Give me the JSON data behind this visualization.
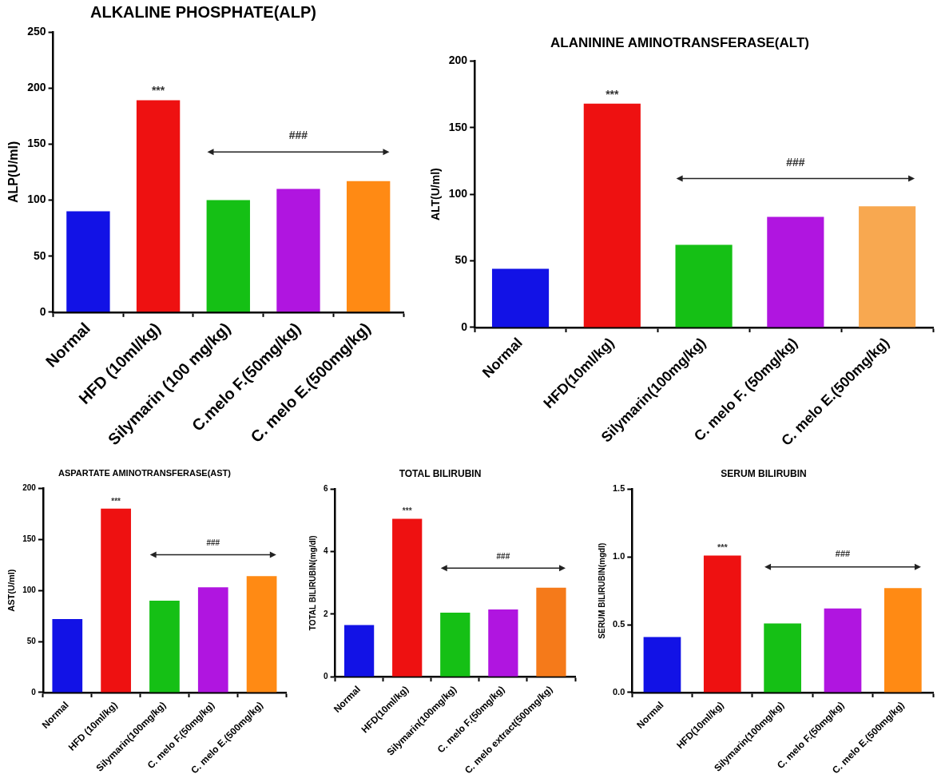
{
  "chart_data": [
    {
      "type": "bar",
      "title": "ALKALINE PHOSPHATE(ALP)",
      "ylabel": "ALP(U/ml)",
      "categories": [
        "Normal",
        "HFD (10ml/kg)",
        "Silymarin (100 mg/kg)",
        "C.melo F.(50mg/kg)",
        "C. melo E.(500mg/kg)"
      ],
      "values": [
        90,
        189,
        100,
        110,
        117
      ],
      "colors": [
        "#1212e6",
        "#ee1111",
        "#15c015",
        "#b015e0",
        "#ff8a14"
      ],
      "ylim": [
        0,
        250
      ],
      "yticks": [
        0,
        50,
        100,
        150,
        200,
        250
      ],
      "grid": false,
      "legend": false,
      "annotations": [
        "***",
        "###"
      ]
    },
    {
      "type": "bar",
      "title": "ALANININE AMINOTRANSFERASE(ALT)",
      "ylabel": "ALT(U/ml)",
      "categories": [
        "Normal",
        "HFD(10ml/kg)",
        "Silymarin(100mg/kg)",
        "C. melo F. (50mg/kg)",
        "C. melo E.(500mg/kg)"
      ],
      "values": [
        44,
        168,
        62,
        83,
        91
      ],
      "colors": [
        "#1212e6",
        "#ee1111",
        "#15c015",
        "#b015e0",
        "#f8a850"
      ],
      "ylim": [
        0,
        200
      ],
      "yticks": [
        0,
        50,
        100,
        150,
        200
      ],
      "grid": false,
      "legend": false,
      "annotations": [
        "***",
        "###"
      ]
    },
    {
      "type": "bar",
      "title": "ASPARTATE AMINOTRANSFERASE(AST)",
      "ylabel": "AST(U/ml)",
      "categories": [
        "Normal",
        "HFD (10ml/kg)",
        "Silymarin(100mg/kg)",
        "C. melo F.(50mg/kg)",
        "C. melo E.(500mg/kg)"
      ],
      "values": [
        72,
        180,
        90,
        103,
        114
      ],
      "colors": [
        "#1212e6",
        "#ee1111",
        "#15c015",
        "#b015e0",
        "#ff8a14"
      ],
      "ylim": [
        0,
        200
      ],
      "yticks": [
        0,
        50,
        100,
        150,
        200
      ],
      "grid": false,
      "legend": false,
      "annotations": [
        "***",
        "###"
      ]
    },
    {
      "type": "bar",
      "title": "TOTAL BILIRUBIN",
      "ylabel": "TOTAL BILIRUBIN(mg/dl)",
      "categories": [
        "Normal",
        "HFD(10ml/kg)",
        "Silymarin(100mg/kg)",
        "C. melo F.(50mg/kg)",
        "C. melo extract(500mg/kg)"
      ],
      "values": [
        1.65,
        5.05,
        2.05,
        2.15,
        2.85
      ],
      "colors": [
        "#1212e6",
        "#ee1111",
        "#15c015",
        "#b015e0",
        "#f57a1a"
      ],
      "ylim": [
        0,
        6
      ],
      "yticks": [
        0,
        2,
        4,
        6
      ],
      "grid": false,
      "legend": false,
      "annotations": [
        "***",
        "###"
      ]
    },
    {
      "type": "bar",
      "title": "SERUM BILIRUBIN",
      "ylabel": "SERUM BILIRUBIN(mgdl)",
      "categories": [
        "Normal",
        "HFD(10ml/kg)",
        "Silymarin(100mg/kg)",
        "C. melo F.(50mg/kg)",
        "C. melo E.(500mg/kg)"
      ],
      "values": [
        0.41,
        1.01,
        0.51,
        0.62,
        0.77
      ],
      "colors": [
        "#1212e6",
        "#ee1111",
        "#15c015",
        "#b015e0",
        "#ff8a14"
      ],
      "ylim": [
        0,
        1.5
      ],
      "yticks": [
        {
          "value": 0,
          "label": "0.0"
        },
        {
          "value": 0.5,
          "label": "0.5"
        },
        {
          "value": 1,
          "label": "1.0"
        },
        {
          "value": 1.5,
          "label": "1.5"
        }
      ],
      "grid": false,
      "legend": false,
      "annotations": [
        "***",
        "###"
      ]
    }
  ]
}
